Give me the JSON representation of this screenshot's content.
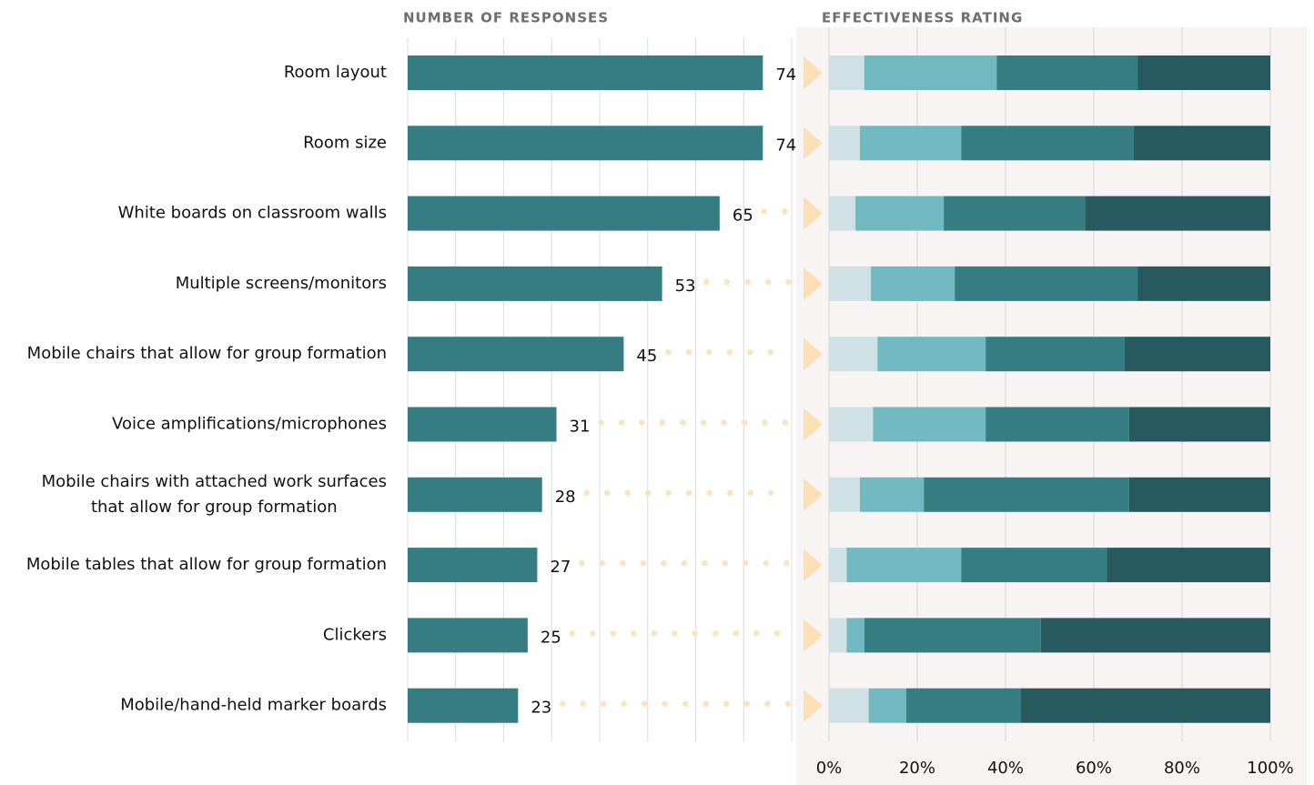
{
  "chart_data": [
    {
      "type": "hbar",
      "title": "NUMBER OF RESPONSES",
      "orientation": "horizontal",
      "categories": [
        "Room layout",
        "Room size",
        "White boards on classroom walls",
        "Multiple screens/monitors",
        "Mobile chairs that allow for group formation",
        "Voice amplifications/microphones",
        "Mobile chairs with attached work surfaces\nthat allow for group formation",
        "Mobile tables that allow for group formation",
        "Clickers",
        "Mobile/hand-held marker boards"
      ],
      "values": [
        74,
        74,
        65,
        53,
        45,
        31,
        28,
        27,
        25,
        23
      ],
      "color": "#357c83",
      "xlim": [
        0,
        80
      ],
      "xticks": [
        0,
        10,
        20,
        30,
        40,
        50,
        60,
        70,
        80
      ],
      "grid": true
    },
    {
      "type": "stacked-hbar",
      "title": "EFFECTIVENESS RATING",
      "orientation": "horizontal",
      "series": [
        {
          "color": "#cfe1e4",
          "values": [
            8,
            7,
            6,
            9.5,
            11,
            10,
            7,
            4,
            4,
            9
          ]
        },
        {
          "color": "#72b8c0",
          "values": [
            30,
            23,
            20,
            19,
            24.5,
            25.5,
            14.5,
            26,
            4,
            8.5
          ]
        },
        {
          "color": "#357c83",
          "values": [
            32,
            39,
            32,
            41.5,
            31.5,
            32.5,
            46.5,
            33,
            40,
            26
          ]
        },
        {
          "color": "#265a5f",
          "values": [
            30,
            31,
            42,
            30,
            33,
            32,
            32,
            37,
            52,
            56.5
          ]
        }
      ],
      "xlim": [
        0,
        100
      ],
      "xticks": [
        {
          "value": 0,
          "label": "0%"
        },
        {
          "value": 20,
          "label": "20%"
        },
        {
          "value": 40,
          "label": "40%"
        },
        {
          "value": 60,
          "label": "60%"
        },
        {
          "value": 80,
          "label": "80%"
        },
        {
          "value": 100,
          "label": "100%"
        }
      ],
      "grid": true
    }
  ]
}
